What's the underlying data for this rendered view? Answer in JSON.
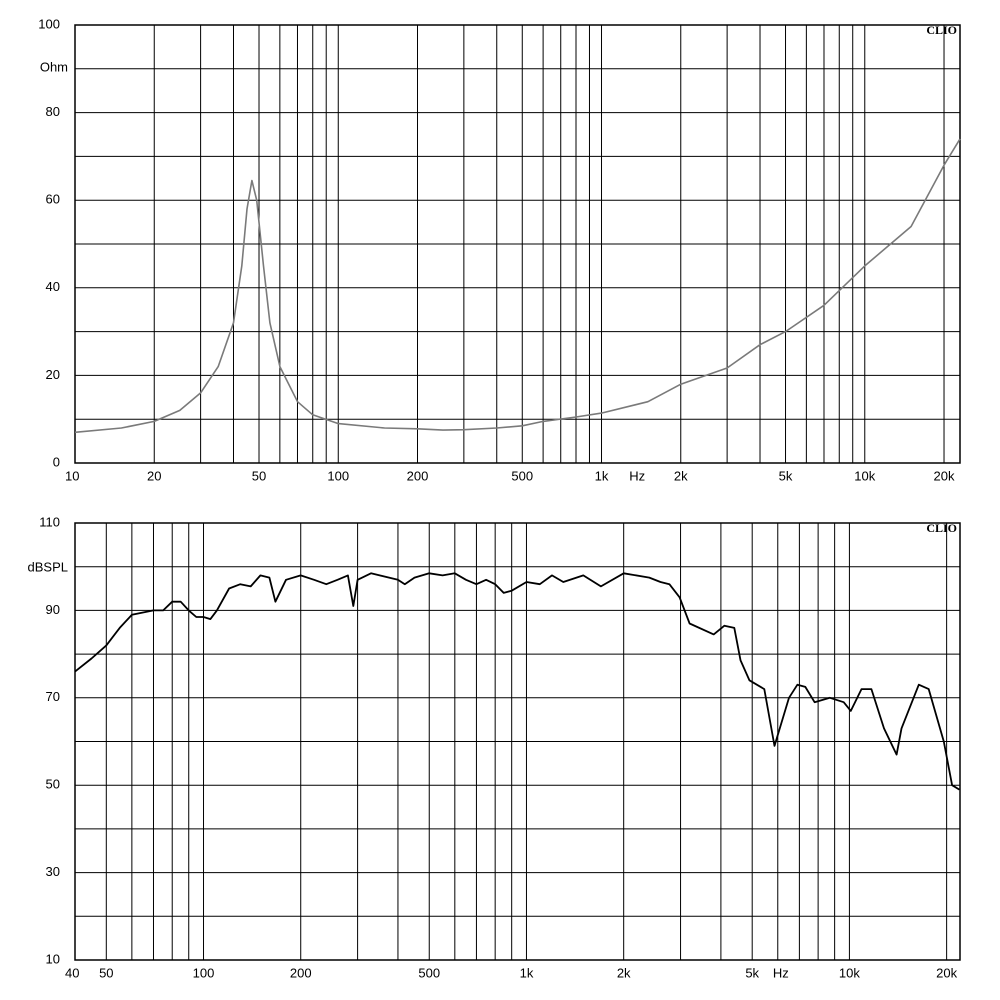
{
  "chart_data": [
    {
      "type": "line",
      "xscale": "log",
      "y_unit": "Ohm",
      "x_unit": "Hz",
      "brand": "CLIO",
      "color": "#7a7a7a",
      "grid": true,
      "x": [
        10,
        15,
        20,
        25,
        30,
        35,
        40,
        43,
        45,
        47,
        49,
        52,
        55,
        60,
        70,
        80,
        100,
        150,
        200,
        250,
        300,
        400,
        500,
        600,
        800,
        1000,
        1500,
        2000,
        3000,
        4000,
        5000,
        7000,
        10000,
        15000,
        20000,
        23000
      ],
      "values": [
        7,
        8,
        9.5,
        12,
        16,
        22,
        32,
        45,
        58,
        64.5,
        60,
        45,
        32,
        22,
        14,
        11,
        9,
        8,
        7.8,
        7.5,
        7.6,
        8,
        8.5,
        9.5,
        10.5,
        11.4,
        14,
        18,
        21.7,
        27,
        30,
        36,
        45,
        54,
        68,
        74
      ],
      "xlim": [
        10,
        23000
      ],
      "ylim": [
        0,
        100
      ],
      "xticks": [
        10,
        20,
        50,
        100,
        200,
        500,
        {
          "value": 1000,
          "label": "1k"
        },
        {
          "value": 2000,
          "label": "2k"
        },
        {
          "value": 5000,
          "label": "5k"
        },
        {
          "value": 10000,
          "label": "10k"
        },
        {
          "value": 20000,
          "label": "20k"
        }
      ],
      "yticks": [
        0,
        20,
        40,
        60,
        80,
        100
      ],
      "xgrid": [
        10,
        20,
        30,
        40,
        50,
        60,
        70,
        80,
        90,
        100,
        200,
        300,
        400,
        500,
        600,
        700,
        800,
        900,
        1000,
        2000,
        3000,
        4000,
        5000,
        6000,
        7000,
        8000,
        9000,
        10000,
        20000
      ],
      "ygrid": [
        0,
        10,
        20,
        30,
        40,
        50,
        60,
        70,
        80,
        90,
        100
      ]
    },
    {
      "type": "line",
      "xscale": "log",
      "y_unit": "dBSPL",
      "x_unit": "Hz",
      "brand": "CLIO",
      "color": "#000000",
      "grid": true,
      "x": [
        40,
        45,
        50,
        55,
        60,
        70,
        75,
        80,
        85,
        90,
        95,
        100,
        105,
        110,
        120,
        130,
        140,
        150,
        160,
        167,
        180,
        200,
        220,
        240,
        260,
        280,
        291,
        300,
        330,
        400,
        420,
        450,
        500,
        550,
        600,
        650,
        700,
        750,
        800,
        850,
        900,
        1000,
        1100,
        1200,
        1300,
        1500,
        1700,
        2000,
        2400,
        2600,
        2770,
        2980,
        3200,
        3800,
        4100,
        4400,
        4600,
        4900,
        5450,
        5860,
        6500,
        6900,
        7300,
        7800,
        8700,
        9600,
        10100,
        10900,
        11700,
        12800,
        14000,
        14500,
        16400,
        17600,
        19600,
        20800,
        21900
      ],
      "values": [
        76,
        79,
        82,
        86,
        89,
        90,
        90,
        92,
        92,
        90,
        88.5,
        88.5,
        88,
        90,
        95,
        96,
        95.5,
        98,
        97.5,
        92,
        97,
        98,
        97,
        96,
        97,
        98,
        91,
        97,
        98.5,
        97,
        96,
        97.5,
        98.5,
        98,
        98.5,
        97,
        96,
        97,
        96,
        94,
        94.5,
        96.5,
        96,
        98,
        96.5,
        98,
        95.5,
        98.5,
        97.5,
        96.5,
        96,
        93,
        87,
        84.5,
        86.5,
        86,
        78.6,
        74,
        72,
        59,
        70,
        73,
        72.5,
        69,
        70,
        69,
        67,
        72,
        72,
        63,
        57,
        63,
        73,
        72,
        60,
        50,
        49
      ],
      "xlim": [
        40,
        22000
      ],
      "ylim": [
        10,
        110
      ],
      "xticks": [
        40,
        50,
        100,
        200,
        500,
        {
          "value": 1000,
          "label": "1k"
        },
        {
          "value": 2000,
          "label": "2k"
        },
        {
          "value": 5000,
          "label": "5k"
        },
        {
          "value": 10000,
          "label": "10k"
        },
        {
          "value": 20000,
          "label": "20k"
        }
      ],
      "yticks": [
        10,
        30,
        50,
        70,
        90,
        110
      ],
      "xgrid": [
        40,
        50,
        60,
        70,
        80,
        90,
        100,
        200,
        300,
        400,
        500,
        600,
        700,
        800,
        900,
        1000,
        2000,
        3000,
        4000,
        5000,
        6000,
        7000,
        8000,
        9000,
        10000,
        20000
      ],
      "ygrid": [
        10,
        20,
        30,
        40,
        50,
        60,
        70,
        80,
        90,
        100,
        110
      ]
    }
  ]
}
